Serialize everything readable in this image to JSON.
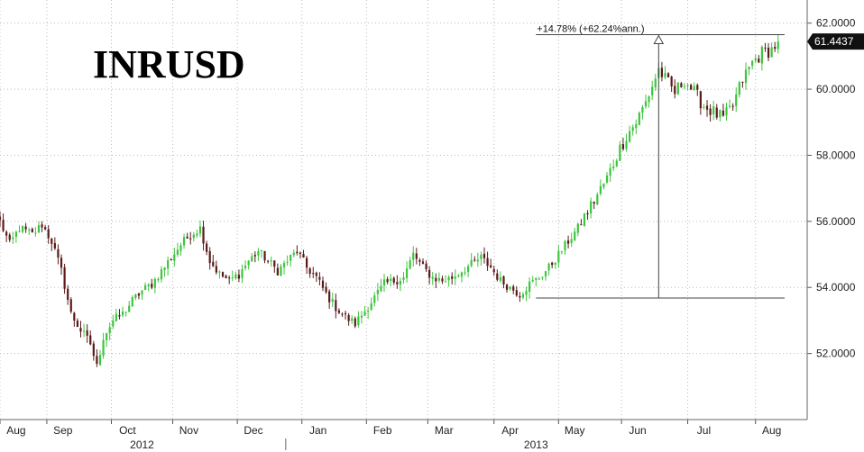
{
  "chart_data": {
    "type": "candlestick",
    "title": "INRUSD",
    "ylim": [
      50.0,
      62.7
    ],
    "y_ticks": [
      "52.0000",
      "54.0000",
      "56.0000",
      "58.0000",
      "60.0000",
      "62.0000"
    ],
    "y_tick_values": [
      52,
      54,
      56,
      58,
      60,
      62
    ],
    "x_range": [
      0,
      250
    ],
    "x_ticks": [
      {
        "label": "Aug",
        "pos": 5
      },
      {
        "label": "Sep",
        "pos": 19.5
      },
      {
        "label": "Oct",
        "pos": 39.5
      },
      {
        "label": "Nov",
        "pos": 58.5
      },
      {
        "label": "Dec",
        "pos": 78.5
      },
      {
        "label": "Jan",
        "pos": 98.5
      },
      {
        "label": "Feb",
        "pos": 118.5
      },
      {
        "label": "Mar",
        "pos": 137.5
      },
      {
        "label": "Apr",
        "pos": 158
      },
      {
        "label": "May",
        "pos": 178
      },
      {
        "label": "Jun",
        "pos": 197.5
      },
      {
        "label": "Jul",
        "pos": 218
      },
      {
        "label": "Aug",
        "pos": 239
      }
    ],
    "year_labels": [
      {
        "label": "2012",
        "pos": 44
      },
      {
        "label": "2013",
        "pos": 166
      }
    ],
    "year_divider_pos": 88.5,
    "keypoints": [
      [
        0,
        56.0
      ],
      [
        3,
        55.3
      ],
      [
        6,
        55.8
      ],
      [
        10,
        55.6
      ],
      [
        13,
        55.9
      ],
      [
        16,
        55.4
      ],
      [
        19,
        54.5
      ],
      [
        22,
        53.2
      ],
      [
        25,
        52.7
      ],
      [
        28,
        52.3
      ],
      [
        30,
        51.6
      ],
      [
        32,
        52.5
      ],
      [
        35,
        53.0
      ],
      [
        38,
        53.2
      ],
      [
        41,
        53.6
      ],
      [
        44,
        53.9
      ],
      [
        47,
        54.1
      ],
      [
        50,
        54.5
      ],
      [
        53,
        54.9
      ],
      [
        56,
        55.3
      ],
      [
        59,
        55.6
      ],
      [
        62,
        55.8
      ],
      [
        65,
        54.8
      ],
      [
        68,
        54.4
      ],
      [
        71,
        54.2
      ],
      [
        74,
        54.4
      ],
      [
        77,
        54.8
      ],
      [
        80,
        55.1
      ],
      [
        83,
        54.8
      ],
      [
        86,
        54.5
      ],
      [
        89,
        54.8
      ],
      [
        92,
        55.1
      ],
      [
        95,
        54.6
      ],
      [
        98,
        54.3
      ],
      [
        101,
        53.8
      ],
      [
        104,
        53.4
      ],
      [
        107,
        53.1
      ],
      [
        110,
        52.9
      ],
      [
        113,
        53.3
      ],
      [
        116,
        53.7
      ],
      [
        119,
        54.1
      ],
      [
        122,
        54.2
      ],
      [
        125,
        54.3
      ],
      [
        128,
        55.0
      ],
      [
        131,
        54.6
      ],
      [
        134,
        54.3
      ],
      [
        137,
        54.2
      ],
      [
        140,
        54.3
      ],
      [
        143,
        54.5
      ],
      [
        146,
        54.7
      ],
      [
        149,
        54.9
      ],
      [
        152,
        54.6
      ],
      [
        155,
        54.2
      ],
      [
        158,
        54.0
      ],
      [
        161,
        53.8
      ],
      [
        164,
        54.1
      ],
      [
        167,
        54.3
      ],
      [
        170,
        54.6
      ],
      [
        173,
        55.0
      ],
      [
        176,
        55.4
      ],
      [
        179,
        55.8
      ],
      [
        182,
        56.3
      ],
      [
        185,
        56.8
      ],
      [
        188,
        57.3
      ],
      [
        191,
        58.0
      ],
      [
        194,
        58.6
      ],
      [
        197,
        59.0
      ],
      [
        200,
        59.6
      ],
      [
        202,
        60.1
      ],
      [
        204,
        60.6
      ],
      [
        206,
        60.3
      ],
      [
        209,
        59.9
      ],
      [
        212,
        60.3
      ],
      [
        215,
        59.9
      ],
      [
        218,
        59.5
      ],
      [
        221,
        59.3
      ],
      [
        224,
        59.1
      ],
      [
        227,
        59.5
      ],
      [
        230,
        60.3
      ],
      [
        233,
        60.8
      ],
      [
        236,
        61.1
      ],
      [
        239,
        61.2
      ],
      [
        241,
        61.44
      ]
    ],
    "base_level": 53.68,
    "top_level": 61.65,
    "range_start": 166,
    "range_end": 239,
    "arrow_x": 204,
    "last_value": 61.4437,
    "last_value_label": "61.4437",
    "annotation": "+14.78% (+62.24%ann.)",
    "up_color": "#3ec43e",
    "down_color": "#5a1a1a",
    "grid": true,
    "grid_style": "dotted"
  }
}
